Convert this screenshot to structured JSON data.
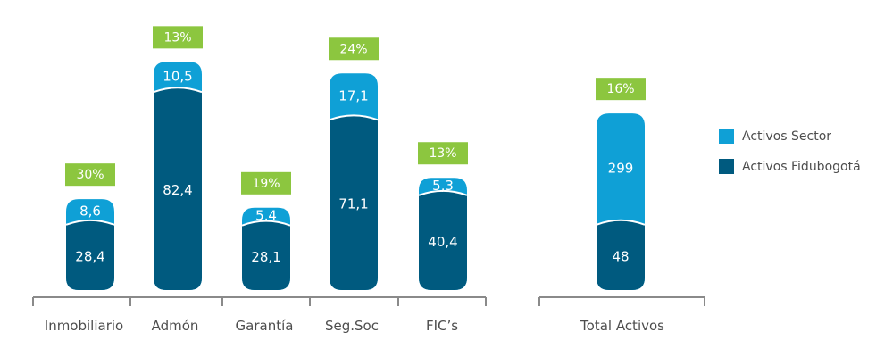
{
  "chart_data": {
    "type": "bar",
    "stacked": true,
    "categories": [
      "Inmobiliario",
      "Admón",
      "Garantía",
      "Seg.Soc",
      "FIC’s",
      "Total Activos"
    ],
    "series": [
      {
        "name": "Activos Fidubogotá",
        "values": [
          28.4,
          82.4,
          28.1,
          71.1,
          40.4,
          48
        ],
        "labels": [
          "28,4",
          "82,4",
          "28,1",
          "71,1",
          "40,4",
          "48"
        ]
      },
      {
        "name": "Activos Sector",
        "values": [
          8.6,
          10.5,
          5.4,
          17.1,
          5.3,
          299
        ],
        "labels": [
          "8,6",
          "10,5",
          "5,4",
          "17,1",
          "5,3",
          "299"
        ]
      }
    ],
    "percentages": [
      "30%",
      "13%",
      "19%",
      "24%",
      "13%",
      "16%"
    ],
    "legend_position": "right",
    "grid": false
  },
  "colors": {
    "fidubogota": "#005a7f",
    "sector": "#0fa0d6",
    "percent_badge": "#8cc63f",
    "axis": "#8a8a8a",
    "text": "#4d4d4d"
  }
}
